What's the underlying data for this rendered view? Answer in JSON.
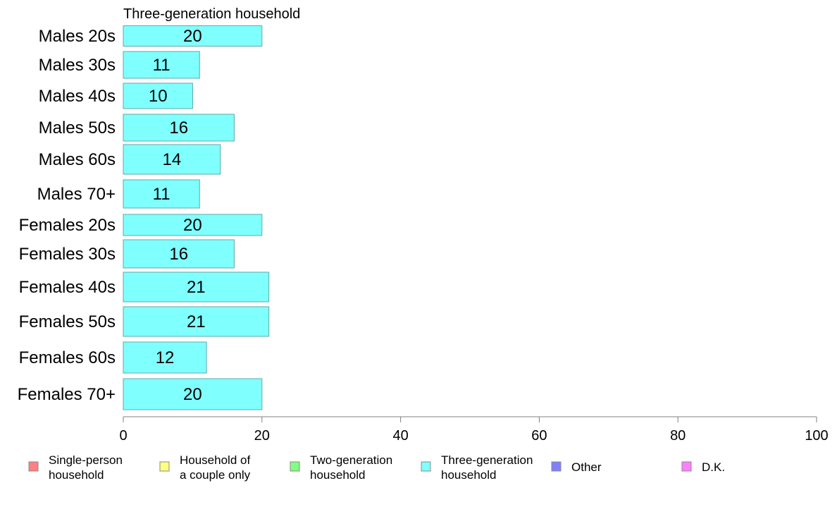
{
  "chart_data": {
    "type": "bar",
    "orientation": "horizontal",
    "title": "Three-generation household",
    "categories": [
      "Males 20s",
      "Males 30s",
      "Males 40s",
      "Males 50s",
      "Males 60s",
      "Males 70+",
      "Females 20s",
      "Females 30s",
      "Females 40s",
      "Females 50s",
      "Females 60s",
      "Females 70+"
    ],
    "series": [
      {
        "name": "Three-generation household",
        "values": [
          20,
          11,
          10,
          16,
          14,
          11,
          20,
          16,
          21,
          21,
          12,
          20
        ]
      }
    ],
    "data_labels": [
      "20",
      "11",
      "10",
      "16",
      "14",
      "11",
      "20",
      "16",
      "21",
      "21",
      "12",
      "20"
    ],
    "xlim": [
      0,
      100
    ],
    "xticks": [
      0,
      20,
      40,
      60,
      80,
      100
    ],
    "bar_color": "#80ffff",
    "bar_edge_color": "#5fa8a8",
    "legend": {
      "position": "bottom",
      "items": [
        {
          "lines": [
            "Single-person",
            "household"
          ],
          "color": "#ff8080"
        },
        {
          "lines": [
            "Household of",
            "a couple only"
          ],
          "color": "#ffff80"
        },
        {
          "lines": [
            "Two-generation",
            "household"
          ],
          "color": "#80ff80"
        },
        {
          "lines": [
            "Three-generation",
            "household"
          ],
          "color": "#80ffff"
        },
        {
          "lines": [
            "Other"
          ],
          "color": "#8080ff"
        },
        {
          "lines": [
            "D.K."
          ],
          "color": "#ff80ff"
        }
      ]
    }
  }
}
